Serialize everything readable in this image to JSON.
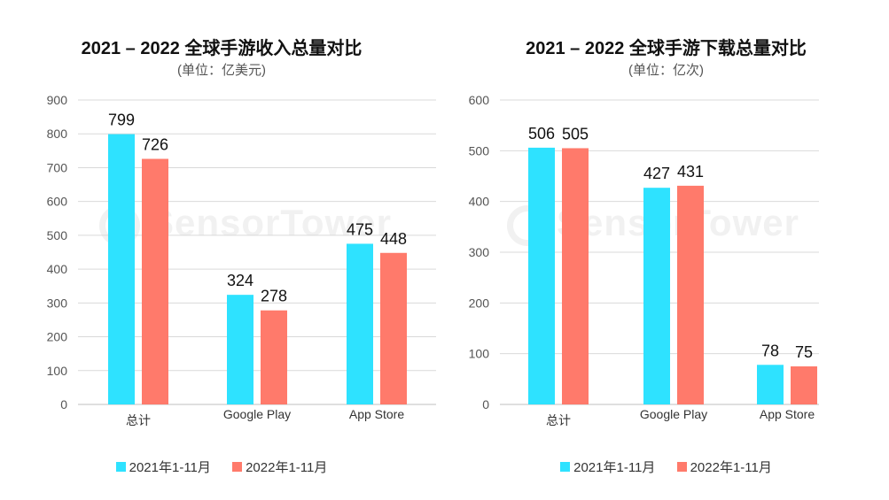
{
  "watermark": "SensorTower",
  "colors": {
    "series2021": "#2ee2ff",
    "series2022": "#ff7a6b",
    "grid": "#d9d9d9",
    "axis": "#bfbfbf"
  },
  "chart_data": [
    {
      "type": "bar",
      "title": "2021 – 2022 全球手游收入总量对比",
      "subtitle": "(单位：亿美元)",
      "categories": [
        "总计",
        "Google Play",
        "App Store"
      ],
      "series": [
        {
          "name": "2021年1-11月",
          "values": [
            799,
            324,
            475
          ]
        },
        {
          "name": "2022年1-11月",
          "values": [
            726,
            278,
            448
          ]
        }
      ],
      "ylim": [
        0,
        900
      ],
      "yticks": [
        0,
        100,
        200,
        300,
        400,
        500,
        600,
        700,
        800,
        900
      ],
      "grid": true,
      "legend": "bottom"
    },
    {
      "type": "bar",
      "title": "2021 – 2022 全球手游下载总量对比",
      "subtitle": "(单位：亿次)",
      "categories": [
        "总计",
        "Google Play",
        "App Store"
      ],
      "series": [
        {
          "name": "2021年1-11月",
          "values": [
            506,
            427,
            78
          ]
        },
        {
          "name": "2022年1-11月",
          "values": [
            505,
            431,
            75
          ]
        }
      ],
      "ylim": [
        0,
        600
      ],
      "yticks": [
        0,
        100,
        200,
        300,
        400,
        500,
        600
      ],
      "grid": true,
      "legend": "bottom"
    }
  ]
}
